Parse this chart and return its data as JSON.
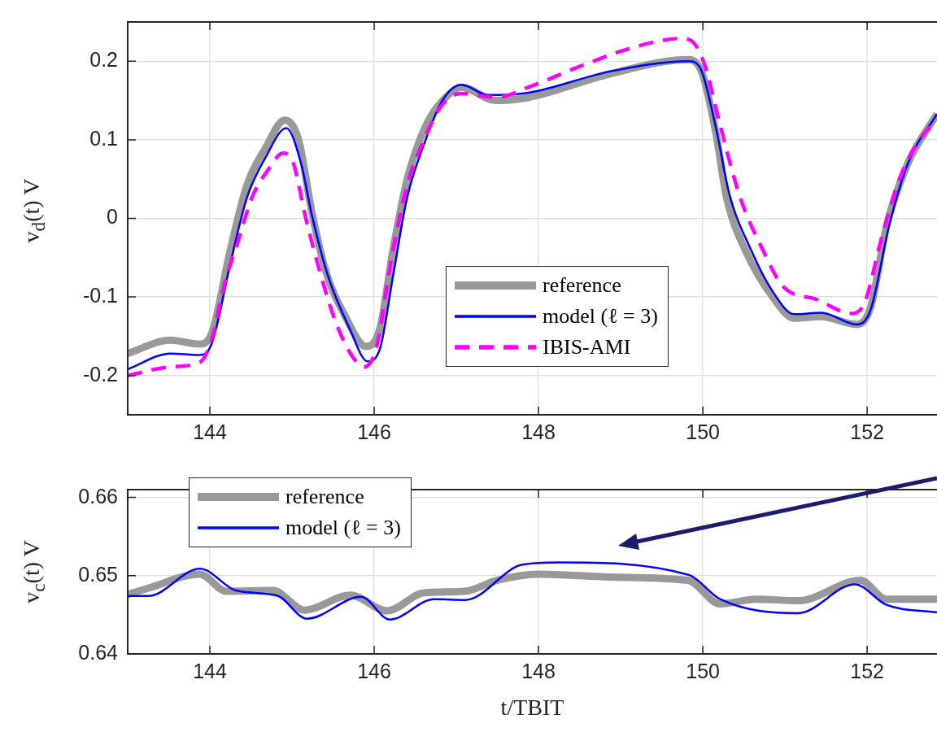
{
  "chart_data": [
    {
      "type": "line",
      "ylabel": "v$_{d}$(t) V",
      "xlim": [
        143,
        152.85
      ],
      "xticks": [
        144,
        146,
        148,
        150,
        152
      ],
      "ylim": [
        -0.25,
        0.25
      ],
      "yticks": [
        -0.2,
        -0.1,
        0,
        0.1,
        0.2
      ],
      "grid": true,
      "legend": "bottom",
      "series": [
        {
          "name": "reference",
          "color": "#999999",
          "line_style": "solid",
          "x": [
            143,
            143.52,
            143.87,
            144.02,
            144.25,
            144.45,
            144.68,
            144.91,
            145.08,
            145.24,
            145.41,
            145.64,
            145.9,
            146.07,
            146.23,
            146.4,
            146.63,
            146.9,
            147.06,
            147.48,
            147.88,
            148.87,
            149.83,
            149.99,
            150.16,
            150.29,
            150.52,
            150.85,
            151.11,
            151.44,
            151.87,
            152.04,
            152.24,
            152.5,
            152.85
          ],
          "values": [
            -0.172,
            -0.155,
            -0.16,
            -0.147,
            -0.04,
            0.042,
            0.09,
            0.125,
            0.1,
            0.009,
            -0.067,
            -0.123,
            -0.163,
            -0.14,
            -0.04,
            0.049,
            0.118,
            0.157,
            0.167,
            0.15,
            0.154,
            0.184,
            0.202,
            0.185,
            0.108,
            0.026,
            -0.041,
            -0.1,
            -0.127,
            -0.125,
            -0.135,
            -0.114,
            -0.008,
            0.071,
            0.133
          ]
        },
        {
          "name": "model (ℓ = 3)",
          "color": "#0000ff",
          "line_style": "solid",
          "x": [
            143,
            143.52,
            143.87,
            144.02,
            144.25,
            144.45,
            144.68,
            144.93,
            145.11,
            145.24,
            145.44,
            145.7,
            145.92,
            146.07,
            146.23,
            146.4,
            146.63,
            146.83,
            147.06,
            147.39,
            147.88,
            148.87,
            149.83,
            149.96,
            150.16,
            150.32,
            150.59,
            150.85,
            151.11,
            151.44,
            151.87,
            152.04,
            152.27,
            152.5,
            152.85
          ],
          "values": [
            -0.192,
            -0.172,
            -0.174,
            -0.16,
            -0.057,
            0.026,
            0.078,
            0.115,
            0.07,
            0.005,
            -0.074,
            -0.14,
            -0.182,
            -0.166,
            -0.073,
            0.026,
            0.101,
            0.15,
            0.17,
            0.157,
            0.16,
            0.187,
            0.2,
            0.193,
            0.115,
            0.032,
            -0.041,
            -0.093,
            -0.122,
            -0.12,
            -0.135,
            -0.117,
            -0.008,
            0.071,
            0.133
          ]
        },
        {
          "name": "IBIS-AMI",
          "color": "#ff00ff",
          "line_style": "dashed",
          "x": [
            143,
            143.52,
            143.88,
            144.02,
            144.18,
            144.35,
            144.51,
            144.71,
            144.89,
            145.01,
            145.17,
            145.31,
            145.5,
            145.7,
            145.88,
            146.03,
            146.2,
            146.4,
            146.6,
            146.83,
            147.06,
            147.48,
            147.88,
            148.54,
            149.2,
            149.73,
            149.86,
            150.03,
            150.19,
            150.45,
            150.72,
            150.98,
            151.38,
            151.81,
            151.97,
            152.17,
            152.4,
            152.67,
            152.85
          ],
          "values": [
            -0.2,
            -0.189,
            -0.183,
            -0.155,
            -0.083,
            -0.027,
            0.026,
            0.062,
            0.083,
            0.072,
            -0.001,
            -0.057,
            -0.123,
            -0.17,
            -0.189,
            -0.163,
            -0.057,
            0.042,
            0.098,
            0.145,
            0.159,
            0.154,
            0.167,
            0.195,
            0.219,
            0.229,
            0.226,
            0.193,
            0.127,
            0.028,
            -0.038,
            -0.087,
            -0.103,
            -0.121,
            -0.107,
            -0.027,
            0.052,
            0.105,
            0.125
          ]
        }
      ]
    },
    {
      "type": "line",
      "xlabel": "t/TBIT",
      "ylabel": "v$_{c}$(t) V",
      "xlim": [
        143,
        152.85
      ],
      "xticks": [
        144,
        146,
        148,
        150,
        152
      ],
      "ylim": [
        0.64,
        0.661
      ],
      "yticks": [
        0.64,
        0.65,
        0.66
      ],
      "grid": true,
      "legend": "top left",
      "series": [
        {
          "name": "reference",
          "color": "#999999",
          "line_style": "solid",
          "x": [
            143,
            143.25,
            143.88,
            144.2,
            144.77,
            145.15,
            145.71,
            146.16,
            146.6,
            147.1,
            147.49,
            147.99,
            148.94,
            149.82,
            150.21,
            150.65,
            151.16,
            151.92,
            152.23,
            152.85
          ],
          "values": [
            0.6476,
            0.6484,
            0.6502,
            0.648,
            0.6481,
            0.6456,
            0.6475,
            0.6455,
            0.6478,
            0.648,
            0.6494,
            0.6502,
            0.6498,
            0.6494,
            0.6464,
            0.647,
            0.6468,
            0.6494,
            0.647,
            0.647
          ]
        },
        {
          "name": "model (ℓ = 3)",
          "color": "#0000ff",
          "line_style": "solid",
          "x": [
            143,
            143.25,
            143.88,
            144.32,
            144.83,
            145.18,
            145.84,
            146.19,
            146.73,
            147.11,
            147.8,
            148.25,
            149.83,
            150.21,
            151.16,
            151.85,
            152.23,
            152.85
          ],
          "values": [
            0.6474,
            0.6474,
            0.6509,
            0.6481,
            0.6474,
            0.6445,
            0.6473,
            0.6444,
            0.647,
            0.6469,
            0.6514,
            0.6517,
            0.6501,
            0.647,
            0.6452,
            0.6489,
            0.6463,
            0.6453
          ]
        }
      ]
    }
  ]
}
